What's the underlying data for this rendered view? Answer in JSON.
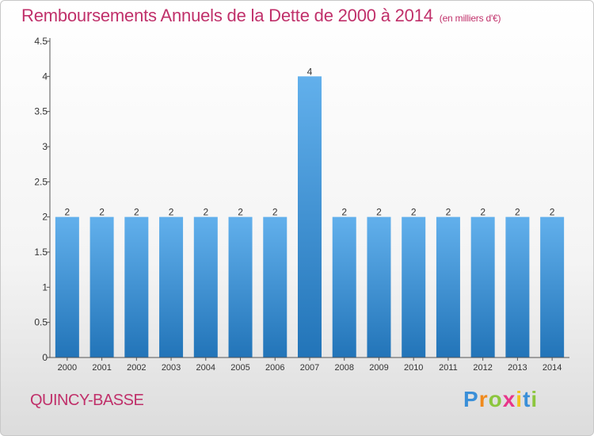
{
  "title": "Remboursements Annuels de la Dette de 2000 à 2014",
  "subtitle": "(en milliers d'€)",
  "place": "QUINCY-BASSE",
  "logo": {
    "text": "Proxiti",
    "letters": [
      "P",
      "r",
      "o",
      "x",
      "i",
      "t",
      "i"
    ],
    "colors": [
      "#3a8fd8",
      "#f08a1c",
      "#8cc63e",
      "#e8368a",
      "#f2c21b",
      "#3a8fd8",
      "#8cc63e"
    ]
  },
  "colors": {
    "title": "#c0306a",
    "bar_light": "#62b0ec",
    "bar_dark": "#2274b8",
    "axis": "#555555"
  },
  "chart_data": {
    "type": "bar",
    "title": "Remboursements Annuels de la Dette de 2000 à 2014",
    "subtitle": "(en milliers d'€)",
    "xlabel": "",
    "ylabel": "",
    "categories": [
      "2000",
      "2001",
      "2002",
      "2003",
      "2004",
      "2005",
      "2006",
      "2007",
      "2008",
      "2009",
      "2010",
      "2011",
      "2012",
      "2013",
      "2014"
    ],
    "values": [
      2,
      2,
      2,
      2,
      2,
      2,
      2,
      4,
      2,
      2,
      2,
      2,
      2,
      2,
      2
    ],
    "data_labels": [
      "2",
      "2",
      "2",
      "2",
      "2",
      "2",
      "2",
      "4",
      "2",
      "2",
      "2",
      "2",
      "2",
      "2",
      "2"
    ],
    "ylim": [
      0,
      4.5
    ],
    "yticks": [
      0,
      0.5,
      1,
      1.5,
      2,
      2.5,
      3,
      3.5,
      4,
      4.5
    ],
    "ytick_labels": [
      "0",
      "0.5",
      "1",
      "1.5",
      "2",
      "2.5",
      "3",
      "3.5",
      "4",
      "4.5"
    ],
    "grid": false,
    "legend": "none"
  }
}
